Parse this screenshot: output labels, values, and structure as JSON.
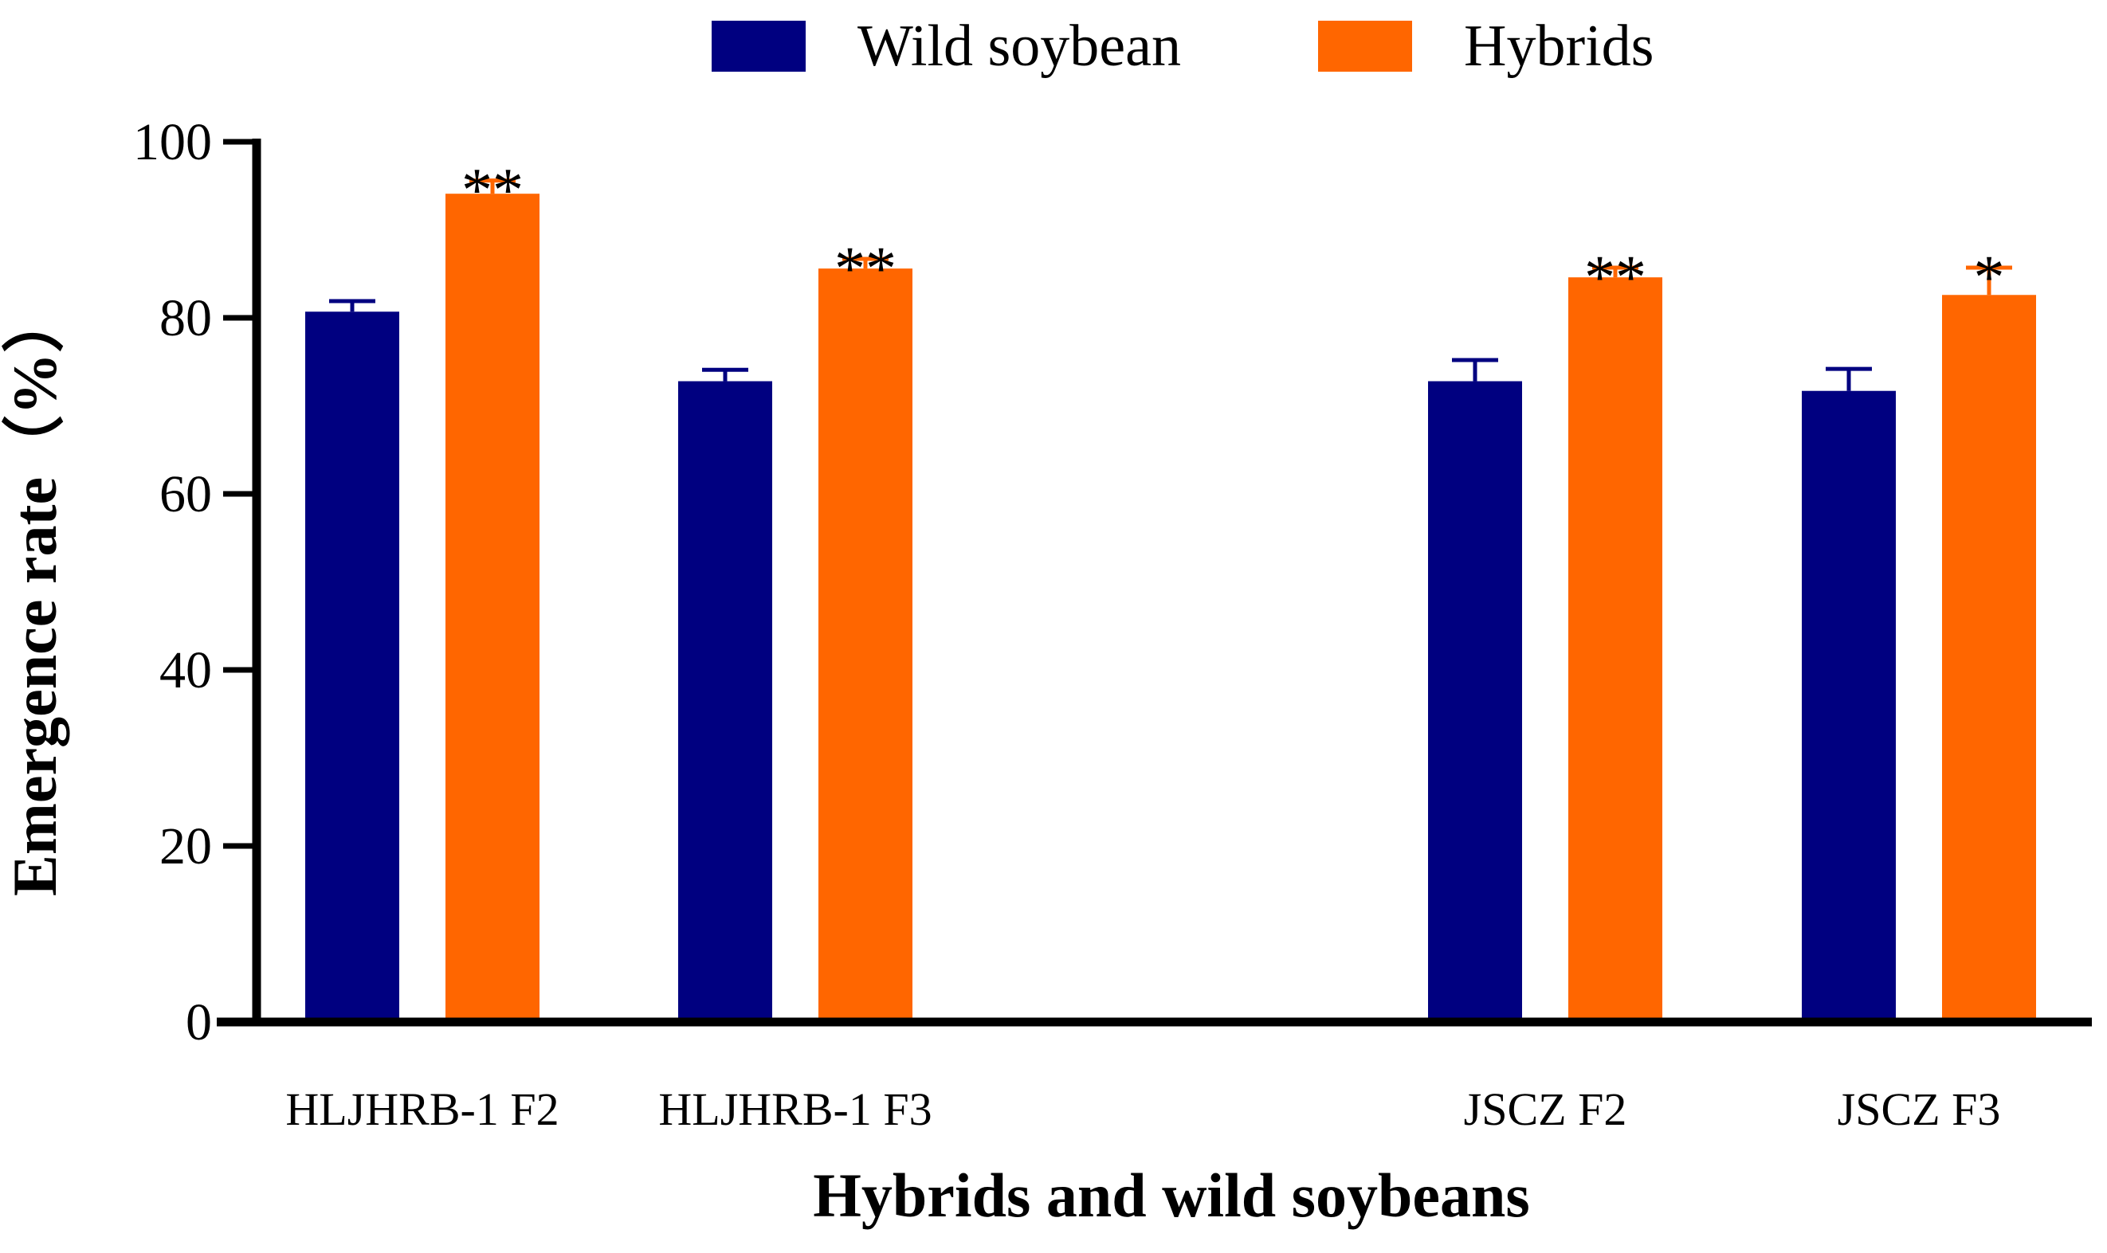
{
  "chart_data": {
    "type": "bar",
    "xlabel": "Hybrids and wild soybeans",
    "ylabel": "Emergence rate（%）",
    "ylim": [
      0,
      100
    ],
    "yticks": [
      "0",
      "20",
      "40",
      "60",
      "80",
      "100"
    ],
    "categories": [
      "HLJHRB-1 F2",
      "HLJHRB-1 F3",
      "JSCZ F2",
      "JSCZ F3"
    ],
    "series": [
      {
        "name": "Wild soybean",
        "color": "#000080",
        "values": [
          80.7,
          72.8,
          72.8,
          71.7
        ],
        "errors": [
          1.2,
          1.3,
          2.4,
          2.5
        ],
        "annotations": [
          "",
          "",
          "",
          ""
        ]
      },
      {
        "name": "Hybrids",
        "color": "#ff6600",
        "values": [
          94.1,
          85.6,
          84.6,
          82.6
        ],
        "errors": [
          1.5,
          1.1,
          1.1,
          3.1
        ],
        "annotations": [
          "**",
          "**",
          "**",
          "*"
        ]
      }
    ],
    "legend": "top-center",
    "grid": false
  }
}
